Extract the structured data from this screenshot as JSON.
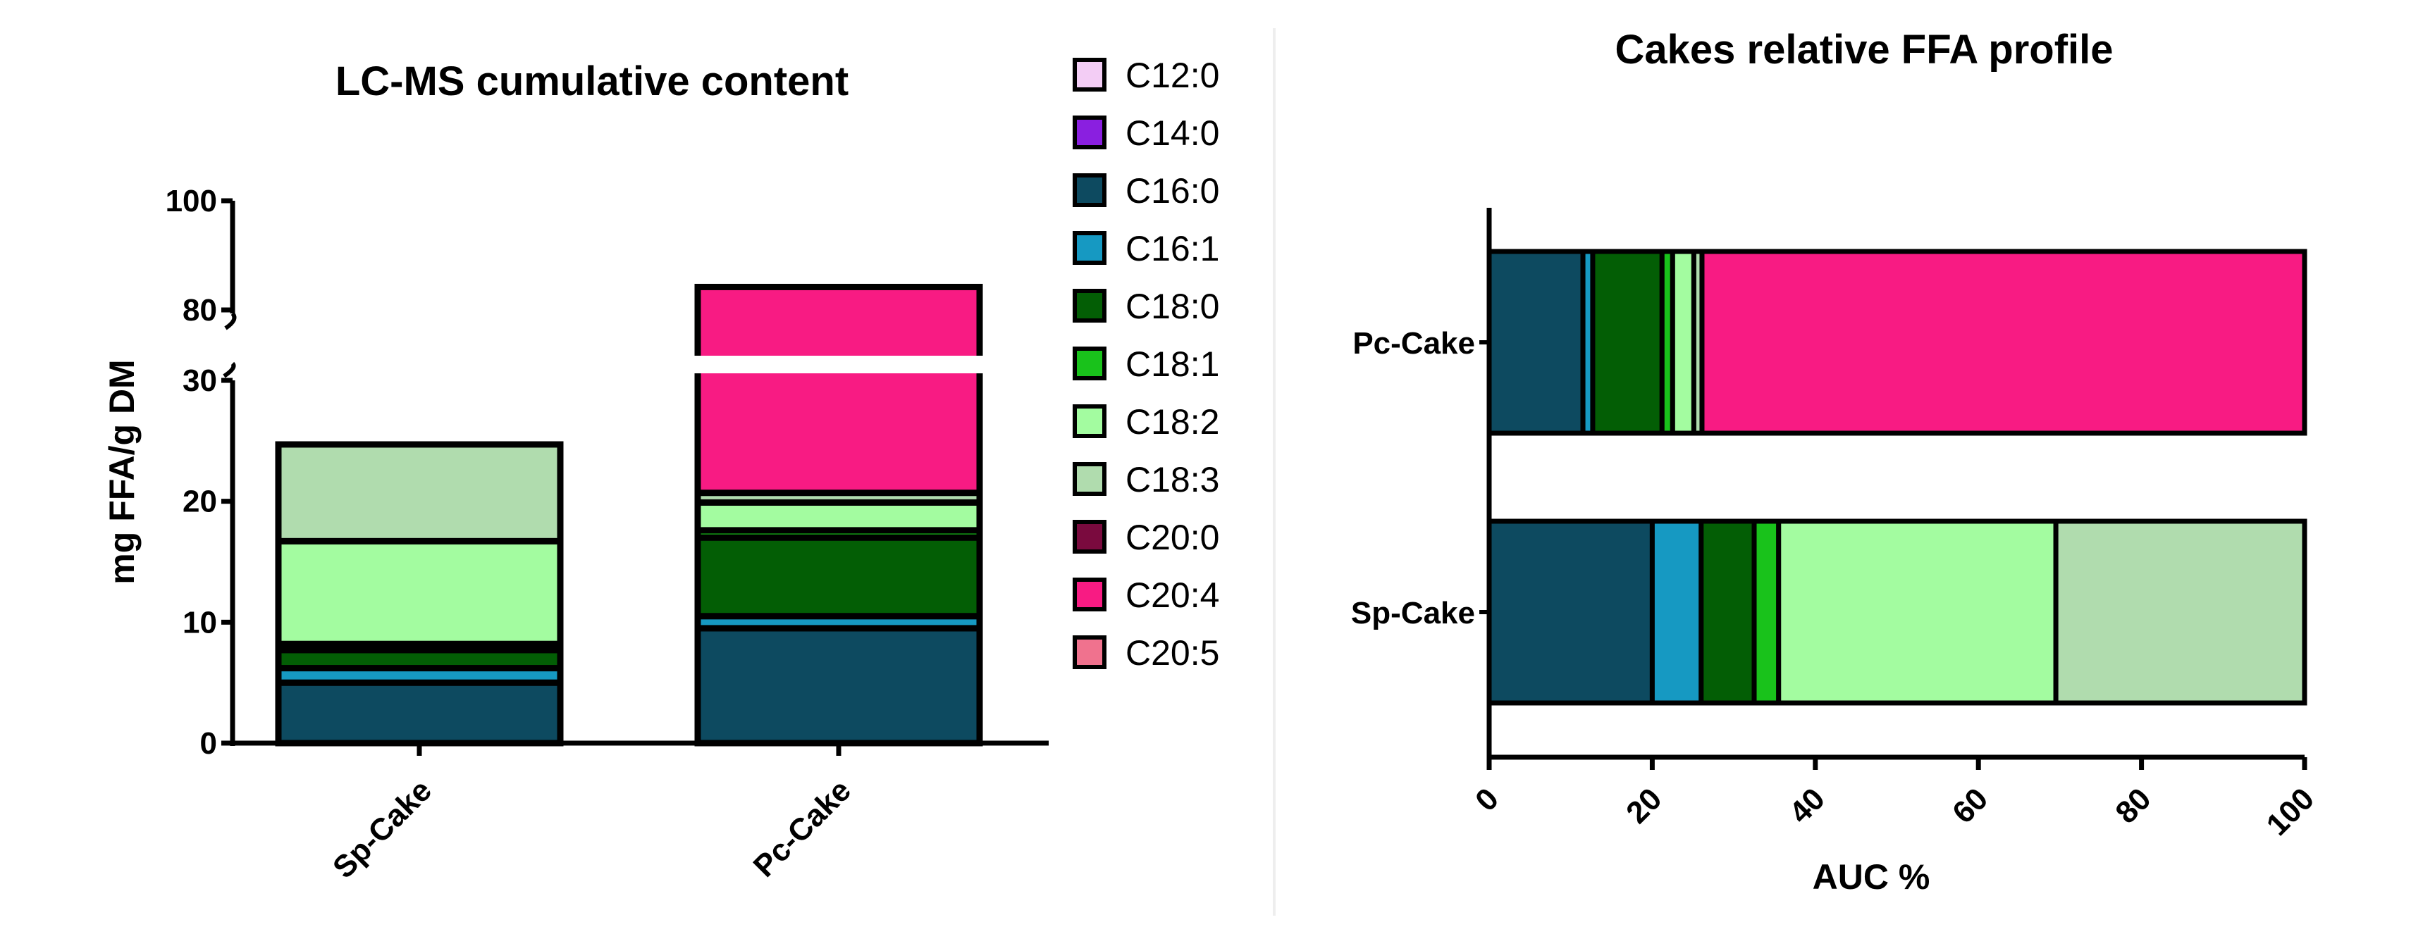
{
  "panel_boundary_color": "#eeeeee",
  "chart_data": [
    {
      "type": "bar",
      "stacked": true,
      "broken_axis": true,
      "title": "LC-MS cumulative content",
      "xlabel": "",
      "ylabel": "mg FFA/g DM",
      "categories": [
        "Sp-Cake",
        "Pc-Cake"
      ],
      "ylim": [
        0,
        100
      ],
      "axis_break": [
        30,
        80
      ],
      "yticks_lower": [
        0,
        10,
        20,
        30
      ],
      "yticks_upper": [
        80,
        100
      ],
      "tick_label_strings": [
        "0",
        "10",
        "20",
        "30",
        "80",
        "100"
      ],
      "legend_position": "right",
      "series": [
        {
          "name": "C12:0",
          "color": "#f3cdf5",
          "values": [
            0,
            0
          ]
        },
        {
          "name": "C14:0",
          "color": "#8a1fe0",
          "values": [
            0,
            0
          ]
        },
        {
          "name": "C16:0",
          "color": "#0d4a60",
          "values": [
            5.0,
            9.5
          ]
        },
        {
          "name": "C16:1",
          "color": "#1699c2",
          "values": [
            1.2,
            1.0
          ]
        },
        {
          "name": "C18:0",
          "color": "#035e05",
          "values": [
            1.5,
            6.5
          ]
        },
        {
          "name": "C18:1",
          "color": "#19c21b",
          "values": [
            0.5,
            0.6
          ]
        },
        {
          "name": "C18:2",
          "color": "#a3fca0",
          "values": [
            8.5,
            2.3
          ]
        },
        {
          "name": "C18:3",
          "color": "#b0dcae",
          "values": [
            8.0,
            0.8
          ]
        },
        {
          "name": "C20:0",
          "color": "#7a0a3e",
          "values": [
            0,
            0
          ]
        },
        {
          "name": "C20:4",
          "color": "#f81b83",
          "values": [
            0,
            63.5
          ]
        },
        {
          "name": "C20:5",
          "color": "#f0728e",
          "values": [
            0,
            0
          ]
        }
      ]
    },
    {
      "type": "bar",
      "stacked": true,
      "orientation": "horizontal",
      "title": "Cakes relative FFA profile",
      "xlabel": "AUC %",
      "ylabel": "",
      "categories": [
        "Pc-Cake",
        "Sp-Cake"
      ],
      "xlim": [
        0,
        100
      ],
      "xticks": [
        0,
        20,
        40,
        60,
        80,
        100
      ],
      "tick_label_strings": [
        "0",
        "20",
        "40",
        "60",
        "80",
        "100"
      ],
      "series": [
        {
          "name": "C16:0",
          "color": "#0d4a60",
          "values": [
            11.5,
            20
          ]
        },
        {
          "name": "C16:1",
          "color": "#1699c2",
          "values": [
            1.2,
            6
          ]
        },
        {
          "name": "C18:0",
          "color": "#035e05",
          "values": [
            8.5,
            6.5
          ]
        },
        {
          "name": "C18:1",
          "color": "#19c21b",
          "values": [
            1.3,
            3
          ]
        },
        {
          "name": "C18:2",
          "color": "#a3fca0",
          "values": [
            2.6,
            34
          ]
        },
        {
          "name": "C18:3",
          "color": "#b0dcae",
          "values": [
            1,
            30.5
          ]
        },
        {
          "name": "C20:4",
          "color": "#f81b83",
          "values": [
            73.9,
            0
          ]
        }
      ]
    }
  ]
}
